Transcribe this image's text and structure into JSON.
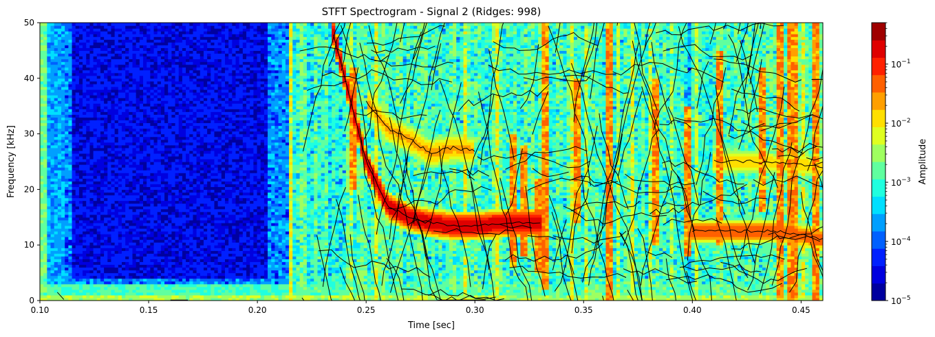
{
  "chart_data": {
    "type": "heatmap",
    "title": "STFT Spectrogram - Signal 2 (Ridges: 998)",
    "xlabel": "Time [sec]",
    "ylabel": "Frequency [kHz]",
    "xlim": [
      0.1,
      0.46
    ],
    "ylim": [
      0,
      50
    ],
    "xticks": [
      0.1,
      0.15,
      0.2,
      0.25,
      0.3,
      0.35,
      0.4,
      0.45
    ],
    "xtick_labels": [
      "0.10",
      "0.15",
      "0.20",
      "0.25",
      "0.30",
      "0.35",
      "0.40",
      "0.45"
    ],
    "yticks": [
      0,
      10,
      20,
      30,
      40,
      50
    ],
    "ytick_labels": [
      "0",
      "10",
      "20",
      "30",
      "40",
      "50"
    ],
    "colorbar": {
      "label": "Amplitude",
      "scale": "log",
      "range": [
        1e-05,
        0.5
      ],
      "ticks": [
        1e-05,
        0.0001,
        0.001,
        0.01,
        0.1
      ],
      "tick_bases": [
        "10",
        "10",
        "10",
        "10",
        "10"
      ],
      "tick_exponents": [
        "−5",
        "−4",
        "−3",
        "−2",
        "−1"
      ],
      "levels": 16,
      "colormap": "jet"
    },
    "ridge_count": 998,
    "ridge_color": "#000000",
    "features": {
      "quiet_region": {
        "t": [
          0.115,
          0.205
        ],
        "f": [
          4,
          50
        ],
        "amplitude": 2e-05
      },
      "low_band": {
        "f": [
          0,
          3
        ],
        "amplitude": 0.001
      },
      "chirp_main": {
        "t": [
          0.235,
          0.25,
          0.26,
          0.27,
          0.28,
          0.29,
          0.3,
          0.315,
          0.33
        ],
        "f": [
          48,
          25,
          17,
          15,
          14,
          13.5,
          13.5,
          14,
          14
        ]
      },
      "chirp_upper": {
        "t": [
          0.25,
          0.26,
          0.27,
          0.28,
          0.29,
          0.3
        ],
        "f": [
          36,
          31,
          29,
          26.5,
          27.5,
          27
        ]
      },
      "band_right": {
        "t": [
          0.4,
          0.42,
          0.44,
          0.46
        ],
        "f": [
          12.5,
          12.5,
          12.5,
          11
        ]
      },
      "band_right_upper": {
        "t": [
          0.41,
          0.43,
          0.45,
          0.46
        ],
        "f": [
          25,
          25,
          24.5,
          24
        ]
      },
      "hot_columns": [
        {
          "t": 0.317,
          "f": [
            6,
            30
          ]
        },
        {
          "t": 0.322,
          "f": [
            8,
            28
          ]
        },
        {
          "t": 0.33,
          "f": [
            5,
            22
          ]
        },
        {
          "t": 0.333,
          "f": [
            2,
            50
          ]
        },
        {
          "t": 0.347,
          "f": [
            14,
            40
          ]
        },
        {
          "t": 0.362,
          "f": [
            0,
            50
          ]
        },
        {
          "t": 0.383,
          "f": [
            10,
            40
          ]
        },
        {
          "t": 0.398,
          "f": [
            8,
            35
          ]
        },
        {
          "t": 0.412,
          "f": [
            10,
            45
          ]
        },
        {
          "t": 0.432,
          "f": [
            16,
            42
          ]
        },
        {
          "t": 0.441,
          "f": [
            0,
            50
          ]
        },
        {
          "t": 0.446,
          "f": [
            0,
            50
          ]
        },
        {
          "t": 0.457,
          "f": [
            0,
            50
          ]
        },
        {
          "t": 0.244,
          "f": [
            20,
            42
          ]
        }
      ]
    }
  }
}
